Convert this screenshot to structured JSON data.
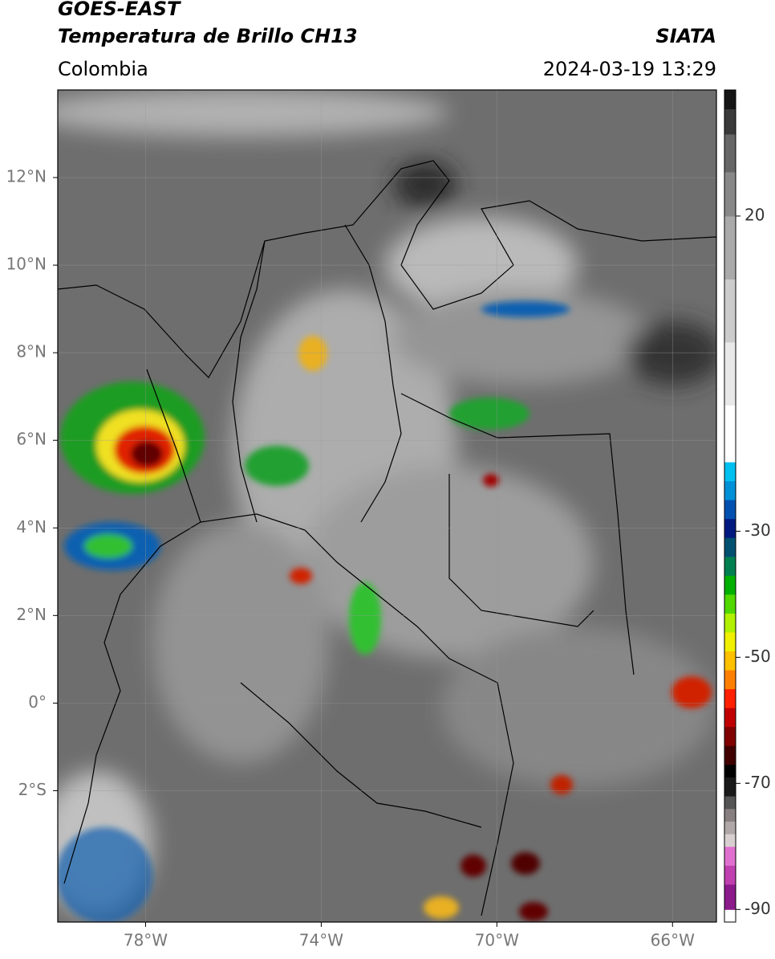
{
  "header": {
    "satellite": "GOES-EAST",
    "product": "Temperatura de Brillo CH13",
    "agency": "SIATA",
    "region": "Colombia",
    "datetime": "2024-03-19 13:29"
  },
  "map": {
    "xlim": [
      -80,
      -65
    ],
    "ylim": [
      -5,
      14
    ],
    "xticks": [
      {
        "value": -78,
        "label": "78°W"
      },
      {
        "value": -74,
        "label": "74°W"
      },
      {
        "value": -70,
        "label": "70°W"
      },
      {
        "value": -66,
        "label": "66°W"
      }
    ],
    "yticks": [
      {
        "value": 12,
        "label": "12°N"
      },
      {
        "value": 10,
        "label": "10°N"
      },
      {
        "value": 8,
        "label": "8°N"
      },
      {
        "value": 6,
        "label": "6°N"
      },
      {
        "value": 4,
        "label": "4°N"
      },
      {
        "value": 2,
        "label": "2°N"
      },
      {
        "value": 0,
        "label": "0°"
      },
      {
        "value": -2,
        "label": "2°S"
      }
    ],
    "grid": true
  },
  "colorbar": {
    "lim": [
      -92,
      40
    ],
    "ticks": [
      20,
      -30,
      -50,
      -70,
      -90
    ],
    "colormap": [
      {
        "value": -92,
        "color": "#ffffff"
      },
      {
        "value": -90,
        "color": "#8b1a8b"
      },
      {
        "value": -86,
        "color": "#c040b0"
      },
      {
        "value": -83,
        "color": "#e070d0"
      },
      {
        "value": -80,
        "color": "#d8d0d0"
      },
      {
        "value": -78,
        "color": "#b0a8a8"
      },
      {
        "value": -76,
        "color": "#888080"
      },
      {
        "value": -74,
        "color": "#555555"
      },
      {
        "value": -72,
        "color": "#1a1a1a"
      },
      {
        "value": -69,
        "color": "#000000"
      },
      {
        "value": -67,
        "color": "#400000"
      },
      {
        "value": -64,
        "color": "#800000"
      },
      {
        "value": -61,
        "color": "#c00000"
      },
      {
        "value": -58,
        "color": "#ff2000"
      },
      {
        "value": -55,
        "color": "#ff8000"
      },
      {
        "value": -52,
        "color": "#ffc000"
      },
      {
        "value": -49,
        "color": "#f0f000"
      },
      {
        "value": -46,
        "color": "#b0f000"
      },
      {
        "value": -43,
        "color": "#50d800"
      },
      {
        "value": -40,
        "color": "#00b000"
      },
      {
        "value": -37,
        "color": "#008050"
      },
      {
        "value": -34,
        "color": "#005070"
      },
      {
        "value": -31,
        "color": "#001a80"
      },
      {
        "value": -28,
        "color": "#0050b0"
      },
      {
        "value": -25,
        "color": "#0090d8"
      },
      {
        "value": -22,
        "color": "#00c0f0"
      },
      {
        "value": -19,
        "color": "#ffffff"
      },
      {
        "value": -10,
        "color": "#e8e8e8"
      },
      {
        "value": 0,
        "color": "#cccccc"
      },
      {
        "value": 10,
        "color": "#aaaaaa"
      },
      {
        "value": 20,
        "color": "#888888"
      },
      {
        "value": 27,
        "color": "#666666"
      },
      {
        "value": 33,
        "color": "#3a3a3a"
      },
      {
        "value": 37,
        "color": "#151515"
      }
    ]
  }
}
